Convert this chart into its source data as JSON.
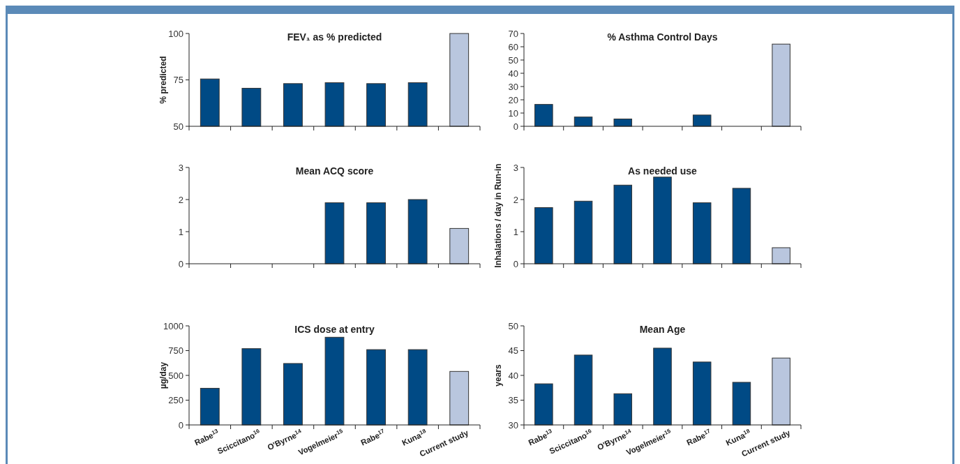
{
  "chart_data": [
    {
      "type": "bar",
      "title": "FEV₁ as % predicted",
      "ylabel": "% predicted",
      "categories": [
        null,
        null,
        null,
        null,
        null,
        null,
        null
      ],
      "values": [
        75.5,
        70.5,
        73,
        73.5,
        73,
        73.5,
        100
      ],
      "colors": [
        "#004a85",
        "#004a85",
        "#004a85",
        "#004a85",
        "#004a85",
        "#004a85",
        "#b9c6de"
      ],
      "ylim": [
        50,
        100
      ],
      "yticks": [
        50,
        75,
        100
      ],
      "tick_labels": "y"
    },
    {
      "type": "bar",
      "title": "% Asthma Control Days",
      "categories": [
        null,
        null,
        null,
        null,
        null,
        null,
        null
      ],
      "values": [
        16.5,
        7,
        5.5,
        null,
        8.5,
        null,
        62
      ],
      "colors": [
        "#004a85",
        "#004a85",
        "#004a85",
        null,
        "#004a85",
        null,
        "#b9c6de"
      ],
      "ylim": [
        0,
        70
      ],
      "yticks": [
        0,
        10,
        20,
        30,
        40,
        50,
        60,
        70
      ],
      "tick_labels": "y"
    },
    {
      "type": "bar",
      "title": "Mean ACQ score",
      "categories": [
        null,
        null,
        null,
        null,
        null,
        null,
        null
      ],
      "values": [
        null,
        null,
        null,
        1.9,
        1.9,
        2.0,
        1.1
      ],
      "colors": [
        null,
        null,
        null,
        "#004a85",
        "#004a85",
        "#004a85",
        "#b9c6de"
      ],
      "ylim": [
        0,
        3
      ],
      "yticks": [
        0,
        1,
        2,
        3
      ],
      "tick_labels": "y"
    },
    {
      "type": "bar",
      "title": "As needed use",
      "ylabel": "Inhalations / day in Run-in",
      "categories": [
        null,
        null,
        null,
        null,
        null,
        null,
        null
      ],
      "values": [
        1.75,
        1.95,
        2.45,
        2.7,
        1.9,
        2.35,
        0.5
      ],
      "colors": [
        "#004a85",
        "#004a85",
        "#004a85",
        "#004a85",
        "#004a85",
        "#004a85",
        "#b9c6de"
      ],
      "ylim": [
        0,
        3
      ],
      "yticks": [
        0,
        1,
        2,
        3
      ],
      "tick_labels": "y"
    },
    {
      "type": "bar",
      "title": "ICS dose at entry",
      "ylabel": "µg/day",
      "categories": [
        "Rabe$^{13}$",
        "Sciccitano$^{16}$",
        "O'Byrne$^{14}$",
        "Vogelmeier$^{15}$",
        "Rabe$^{17}$",
        "Kuna$^{18}$",
        "Current study"
      ],
      "values": [
        370,
        770,
        620,
        885,
        760,
        760,
        540
      ],
      "colors": [
        "#004a85",
        "#004a85",
        "#004a85",
        "#004a85",
        "#004a85",
        "#004a85",
        "#b9c6de"
      ],
      "ylim": [
        0,
        1000
      ],
      "yticks": [
        0,
        250,
        500,
        750,
        1000
      ]
    },
    {
      "type": "bar",
      "title": "Mean Age",
      "ylabel": "years",
      "categories": [
        "Rabe$^{13}$",
        "Sciccitano$^{16}$",
        "O'Byrne$^{14}$",
        "Vogelmeier$^{15}$",
        "Rabe$^{17}$",
        "Kuna$^{18}$",
        "Current study"
      ],
      "values": [
        38.3,
        44.1,
        36.3,
        45.5,
        42.7,
        38.6,
        43.5
      ],
      "colors": [
        "#004a85",
        "#004a85",
        "#004a85",
        "#004a85",
        "#004a85",
        "#004a85",
        "#b9c6de"
      ],
      "ylim": [
        30,
        50
      ],
      "yticks": [
        30,
        35,
        40,
        45,
        50
      ]
    }
  ]
}
